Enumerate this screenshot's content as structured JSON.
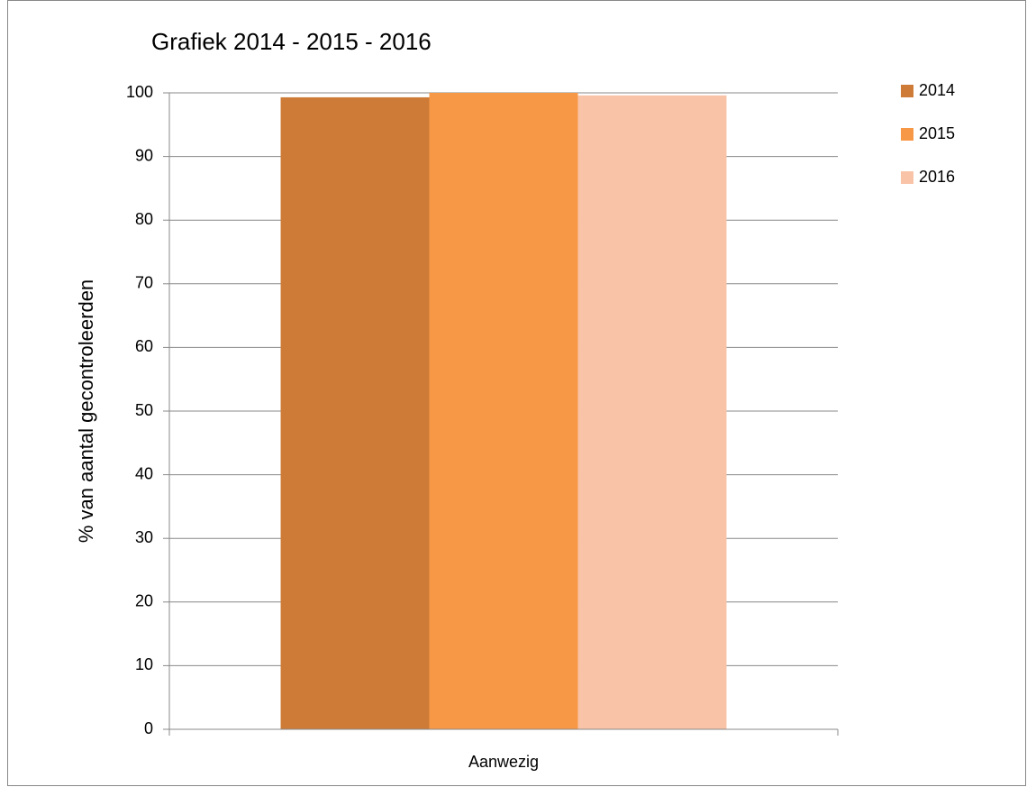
{
  "chart_data": {
    "type": "bar",
    "title": "Grafiek 2014 - 2015 - 2016",
    "y_label": "% van aantal gecontroleerden",
    "categories": [
      "Aanwezig"
    ],
    "series": [
      {
        "name": "2014",
        "color": "#cd7b37",
        "values": [
          99.3
        ]
      },
      {
        "name": "2015",
        "color": "#f79847",
        "values": [
          100
        ]
      },
      {
        "name": "2016",
        "color": "#f9c3a8",
        "values": [
          99.6
        ]
      }
    ],
    "ylim": [
      0,
      100
    ],
    "yticks": [
      0,
      10,
      20,
      30,
      40,
      50,
      60,
      70,
      80,
      90,
      100
    ],
    "grid": true,
    "legend": "right"
  }
}
